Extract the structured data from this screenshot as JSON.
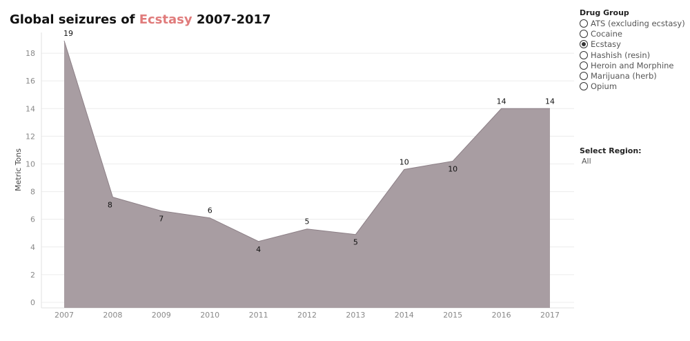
{
  "title": {
    "prefix": "Global seizures of",
    "highlight": "Ecstasy",
    "suffix": "2007-2017",
    "highlight_color": "#e07b7b"
  },
  "drug_group": {
    "label": "Drug Group",
    "options": [
      {
        "label": "ATS (excluding ecstasy)",
        "selected": false
      },
      {
        "label": "Cocaine",
        "selected": false
      },
      {
        "label": "Ecstasy",
        "selected": true
      },
      {
        "label": "Hashish (resin)",
        "selected": false
      },
      {
        "label": "Heroin and Morphine",
        "selected": false
      },
      {
        "label": "Marijuana (herb)",
        "selected": false
      },
      {
        "label": "Opium",
        "selected": false
      }
    ]
  },
  "region": {
    "label": "Select Region:",
    "value": "All"
  },
  "chart_data": {
    "type": "area",
    "x": [
      "2007",
      "2008",
      "2009",
      "2010",
      "2011",
      "2012",
      "2013",
      "2014",
      "2015",
      "2016",
      "2017"
    ],
    "values": [
      18.9,
      7.6,
      6.6,
      6.1,
      4.4,
      5.3,
      4.9,
      9.6,
      10.2,
      14,
      14
    ],
    "data_labels": [
      "19",
      "8",
      "7",
      "6",
      "4",
      "5",
      "5",
      "10",
      "10",
      "14",
      "14"
    ],
    "ylabel": "Metric Tons",
    "yticks": [
      0,
      2,
      4,
      6,
      8,
      10,
      12,
      14,
      16,
      18
    ],
    "ylim": [
      -0.4,
      19.5
    ],
    "fill_color": "#a89da2",
    "line_color": "#8c7f86",
    "grid": true
  }
}
